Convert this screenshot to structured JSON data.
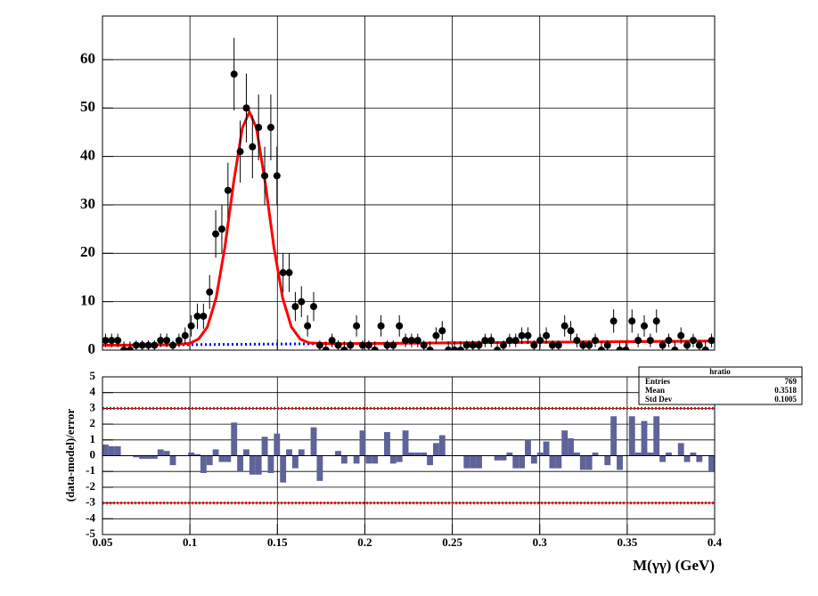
{
  "chart_data": [
    {
      "type": "errorbar",
      "x": [
        0.05175,
        0.05525,
        0.05875,
        0.06225,
        0.06575,
        0.06925,
        0.07275,
        0.07625,
        0.07975,
        0.08325,
        0.08675,
        0.09025,
        0.09375,
        0.09725,
        0.10075,
        0.10425,
        0.10775,
        0.11125,
        0.11475,
        0.11825,
        0.12175,
        0.12525,
        0.12875,
        0.13225,
        0.13575,
        0.13925,
        0.14275,
        0.14625,
        0.14975,
        0.15325,
        0.15675,
        0.16025,
        0.16375,
        0.16725,
        0.17075,
        0.17425,
        0.17775,
        0.18125,
        0.18475,
        0.18825,
        0.19175,
        0.19525,
        0.19875,
        0.20225,
        0.20575,
        0.20925,
        0.21275,
        0.21625,
        0.21975,
        0.22325,
        0.22675,
        0.23025,
        0.23375,
        0.23725,
        0.24075,
        0.24425,
        0.24775,
        0.25125,
        0.25475,
        0.25825,
        0.26175,
        0.26525,
        0.26875,
        0.27225,
        0.27575,
        0.27925,
        0.28275,
        0.28625,
        0.28975,
        0.29325,
        0.29675,
        0.30025,
        0.30375,
        0.30725,
        0.31075,
        0.31425,
        0.31775,
        0.32125,
        0.32475,
        0.32825,
        0.33175,
        0.33525,
        0.33875,
        0.34225,
        0.34575,
        0.34925,
        0.35275,
        0.35625,
        0.35975,
        0.36325,
        0.36675,
        0.37025,
        0.37375,
        0.37725,
        0.38075,
        0.38425,
        0.38775,
        0.39125,
        0.39475,
        0.39825
      ],
      "values": [
        2,
        2,
        2,
        0,
        0,
        1,
        1,
        1,
        1,
        2,
        2,
        1,
        2,
        3,
        5,
        7,
        7,
        12,
        24,
        25,
        33,
        57,
        41,
        50,
        42,
        46,
        36,
        46,
        36,
        16,
        16,
        9,
        10,
        5,
        9,
        1,
        0,
        2,
        1,
        0,
        1,
        5,
        1,
        1,
        0,
        5,
        1,
        1,
        5,
        2,
        2,
        2,
        1,
        0,
        3,
        4,
        0,
        0,
        0,
        1,
        1,
        1,
        2,
        2,
        0,
        1,
        2,
        2,
        3,
        3,
        1,
        2,
        3,
        1,
        1,
        5,
        4,
        2,
        1,
        1,
        2,
        0,
        1,
        6,
        0,
        0,
        6,
        2,
        5,
        2,
        6,
        1,
        2,
        0,
        3,
        1,
        2,
        1,
        0,
        2
      ],
      "errors": [
        1.4,
        1.4,
        1.4,
        1.8,
        1.8,
        1,
        1,
        1,
        1,
        1.4,
        1.4,
        1,
        1.4,
        1.7,
        2.2,
        2.6,
        2.6,
        3.5,
        4.9,
        5,
        5.7,
        7.5,
        6.4,
        7.1,
        6.5,
        6.8,
        6,
        6.8,
        6,
        4,
        4,
        3,
        3.2,
        2.2,
        3,
        1,
        1.8,
        1.4,
        1,
        1.8,
        1,
        2.2,
        1,
        1,
        1.8,
        2.2,
        1,
        1,
        2.2,
        1.4,
        1.4,
        1.4,
        1,
        1.8,
        1.7,
        2,
        1.8,
        1.8,
        1.8,
        1,
        1,
        1,
        1.4,
        1.4,
        1.8,
        1,
        1.4,
        1.4,
        1.7,
        1.7,
        1,
        1.4,
        1.7,
        1,
        1,
        2.2,
        2,
        1.4,
        1,
        1,
        1.4,
        1.8,
        1,
        2.4,
        1.8,
        1.8,
        2.4,
        1.4,
        2.2,
        1.4,
        2.4,
        1,
        1.4,
        1.8,
        1.7,
        1,
        1.4,
        1,
        1.8,
        1.4
      ],
      "color": "#000000",
      "fit": {
        "x": [
          0.05,
          0.08,
          0.09,
          0.1,
          0.105,
          0.11,
          0.115,
          0.12,
          0.125,
          0.13,
          0.134,
          0.138,
          0.143,
          0.148,
          0.153,
          0.158,
          0.163,
          0.168,
          0.18,
          0.25,
          0.3,
          0.35,
          0.4
        ],
        "values": [
          1.0,
          1.08,
          1.1,
          1.4,
          2.3,
          4.8,
          10.8,
          21.3,
          34.7,
          45.9,
          49.2,
          45.9,
          34.7,
          21.3,
          10.8,
          4.8,
          2.3,
          1.5,
          1.33,
          1.5,
          1.63,
          1.75,
          1.88
        ],
        "color": "#ff0000"
      },
      "background": {
        "x": [
          0.05,
          0.4
        ],
        "values": [
          1.0,
          1.88
        ],
        "color": "#0000ff"
      },
      "xlim": [
        0.05,
        0.4
      ],
      "xticks": [
        0.05,
        0.1,
        0.15,
        0.2,
        0.25,
        0.3,
        0.35,
        0.4
      ],
      "ylim": [
        0,
        69
      ],
      "yticks": [
        0,
        10,
        20,
        30,
        40,
        50,
        60
      ],
      "grid": true
    },
    {
      "type": "bar",
      "values": [
        0.7,
        0.6,
        0.6,
        0,
        0,
        -0.1,
        -0.2,
        -0.2,
        -0.2,
        0.4,
        0.3,
        -0.6,
        0,
        0,
        0.2,
        0.1,
        -1.1,
        -0.6,
        0.4,
        -0.4,
        -0.4,
        2.1,
        -1.0,
        0.4,
        -1.2,
        -1.2,
        1.2,
        -1.1,
        1.4,
        -1.7,
        0.4,
        -0.8,
        0.4,
        0,
        1.8,
        -1.6,
        0,
        0,
        0.3,
        -0.5,
        0,
        -0.5,
        1.6,
        -0.5,
        -0.5,
        0,
        1.5,
        -0.5,
        -0.4,
        1.6,
        0.2,
        0.2,
        0.2,
        -0.6,
        0.8,
        1.3,
        0,
        0,
        0,
        -0.8,
        -0.8,
        -0.8,
        0,
        0,
        -0.3,
        -0.3,
        0.2,
        -0.8,
        -0.8,
        1.0,
        -0.5,
        0.2,
        0.9,
        -0.8,
        -0.8,
        1.6,
        1.1,
        0.2,
        -0.9,
        -0.9,
        0.2,
        0,
        -0.6,
        2.5,
        -0.9,
        0,
        2.5,
        0.2,
        2.2,
        0.2,
        2.5,
        -0.4,
        0.2,
        0,
        0.8,
        -0.4,
        0.2,
        -0.4,
        0,
        -1.0
      ],
      "bin_width": 0.0035,
      "color": "#5f6399",
      "reference_lines": [
        3,
        -3
      ],
      "reference_color": "#ff0000",
      "xlim": [
        0.05,
        0.4
      ],
      "xticks": [
        0.05,
        0.1,
        0.15,
        0.2,
        0.25,
        0.3,
        0.35,
        0.4
      ],
      "ylim": [
        -5,
        5
      ],
      "yticks": [
        -5,
        -4,
        -3,
        -2,
        -1,
        0,
        1,
        2,
        3,
        4,
        5
      ],
      "grid": true,
      "x_label": "M(γγ) (GeV)",
      "y_label": "(data-model)/error",
      "stats": {
        "title": "hratio",
        "rows": [
          [
            "Entries",
            769
          ],
          [
            "Mean",
            0.3518
          ],
          [
            "Std Dev",
            0.1005
          ]
        ]
      }
    }
  ]
}
